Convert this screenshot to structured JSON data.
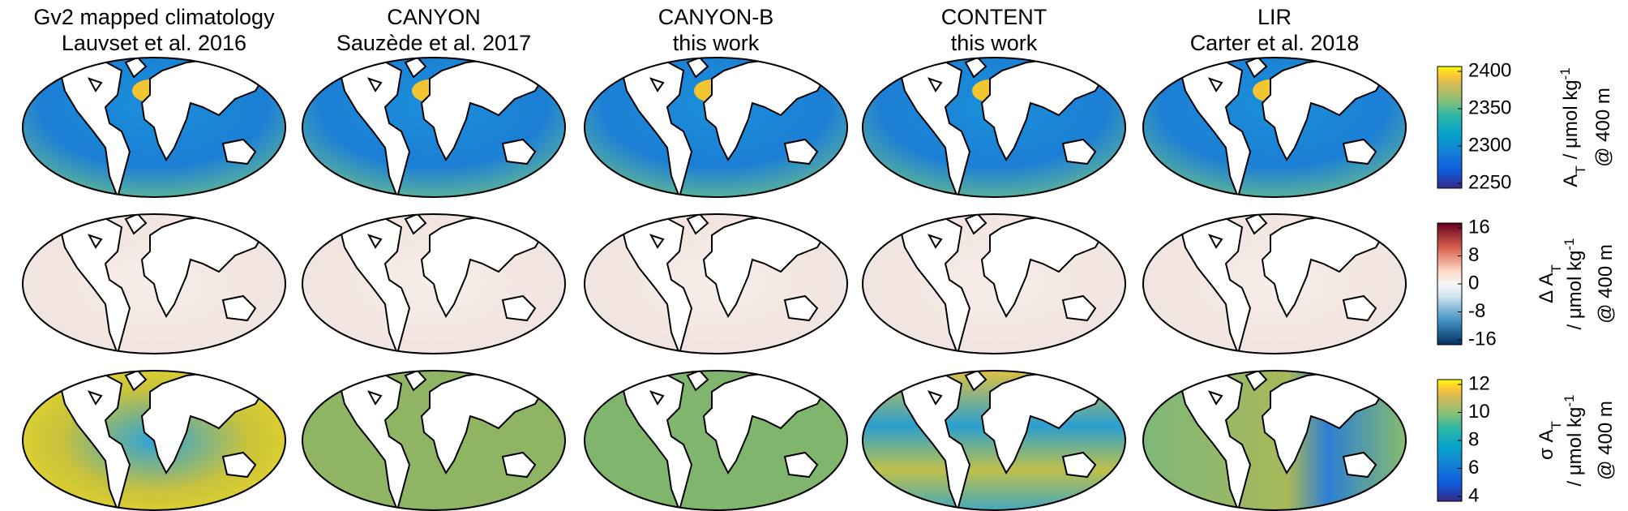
{
  "columns": [
    {
      "title": "Gv2 mapped climatology",
      "subtitle": "Lauvset et al. 2016"
    },
    {
      "title": "CANYON",
      "subtitle": "Sauzède et al. 2017"
    },
    {
      "title": "CANYON-B",
      "subtitle": "this work"
    },
    {
      "title": "CONTENT",
      "subtitle": "this work"
    },
    {
      "title": "LIR",
      "subtitle": "Carter et al. 2018"
    }
  ],
  "rows": [
    {
      "ticks": [
        2250,
        2300,
        2350,
        2400
      ],
      "label": {
        "symbol": "A",
        "subscript": "T",
        "unit": "/ μmol kg",
        "exponent": "-1",
        "depth": "@ 400 m"
      }
    },
    {
      "ticks": [
        -16,
        -8,
        0,
        8,
        16
      ],
      "label": {
        "symbol": "Δ A",
        "subscript": "T",
        "unit": "/ μmol kg",
        "exponent": "-1",
        "depth": "@ 400 m"
      }
    },
    {
      "ticks": [
        4,
        6,
        8,
        10,
        12
      ],
      "label": {
        "symbol": "σ A",
        "subscript": "T",
        "unit": "/ μmol kg",
        "exponent": "-1",
        "depth": "@ 400 m"
      }
    }
  ]
}
